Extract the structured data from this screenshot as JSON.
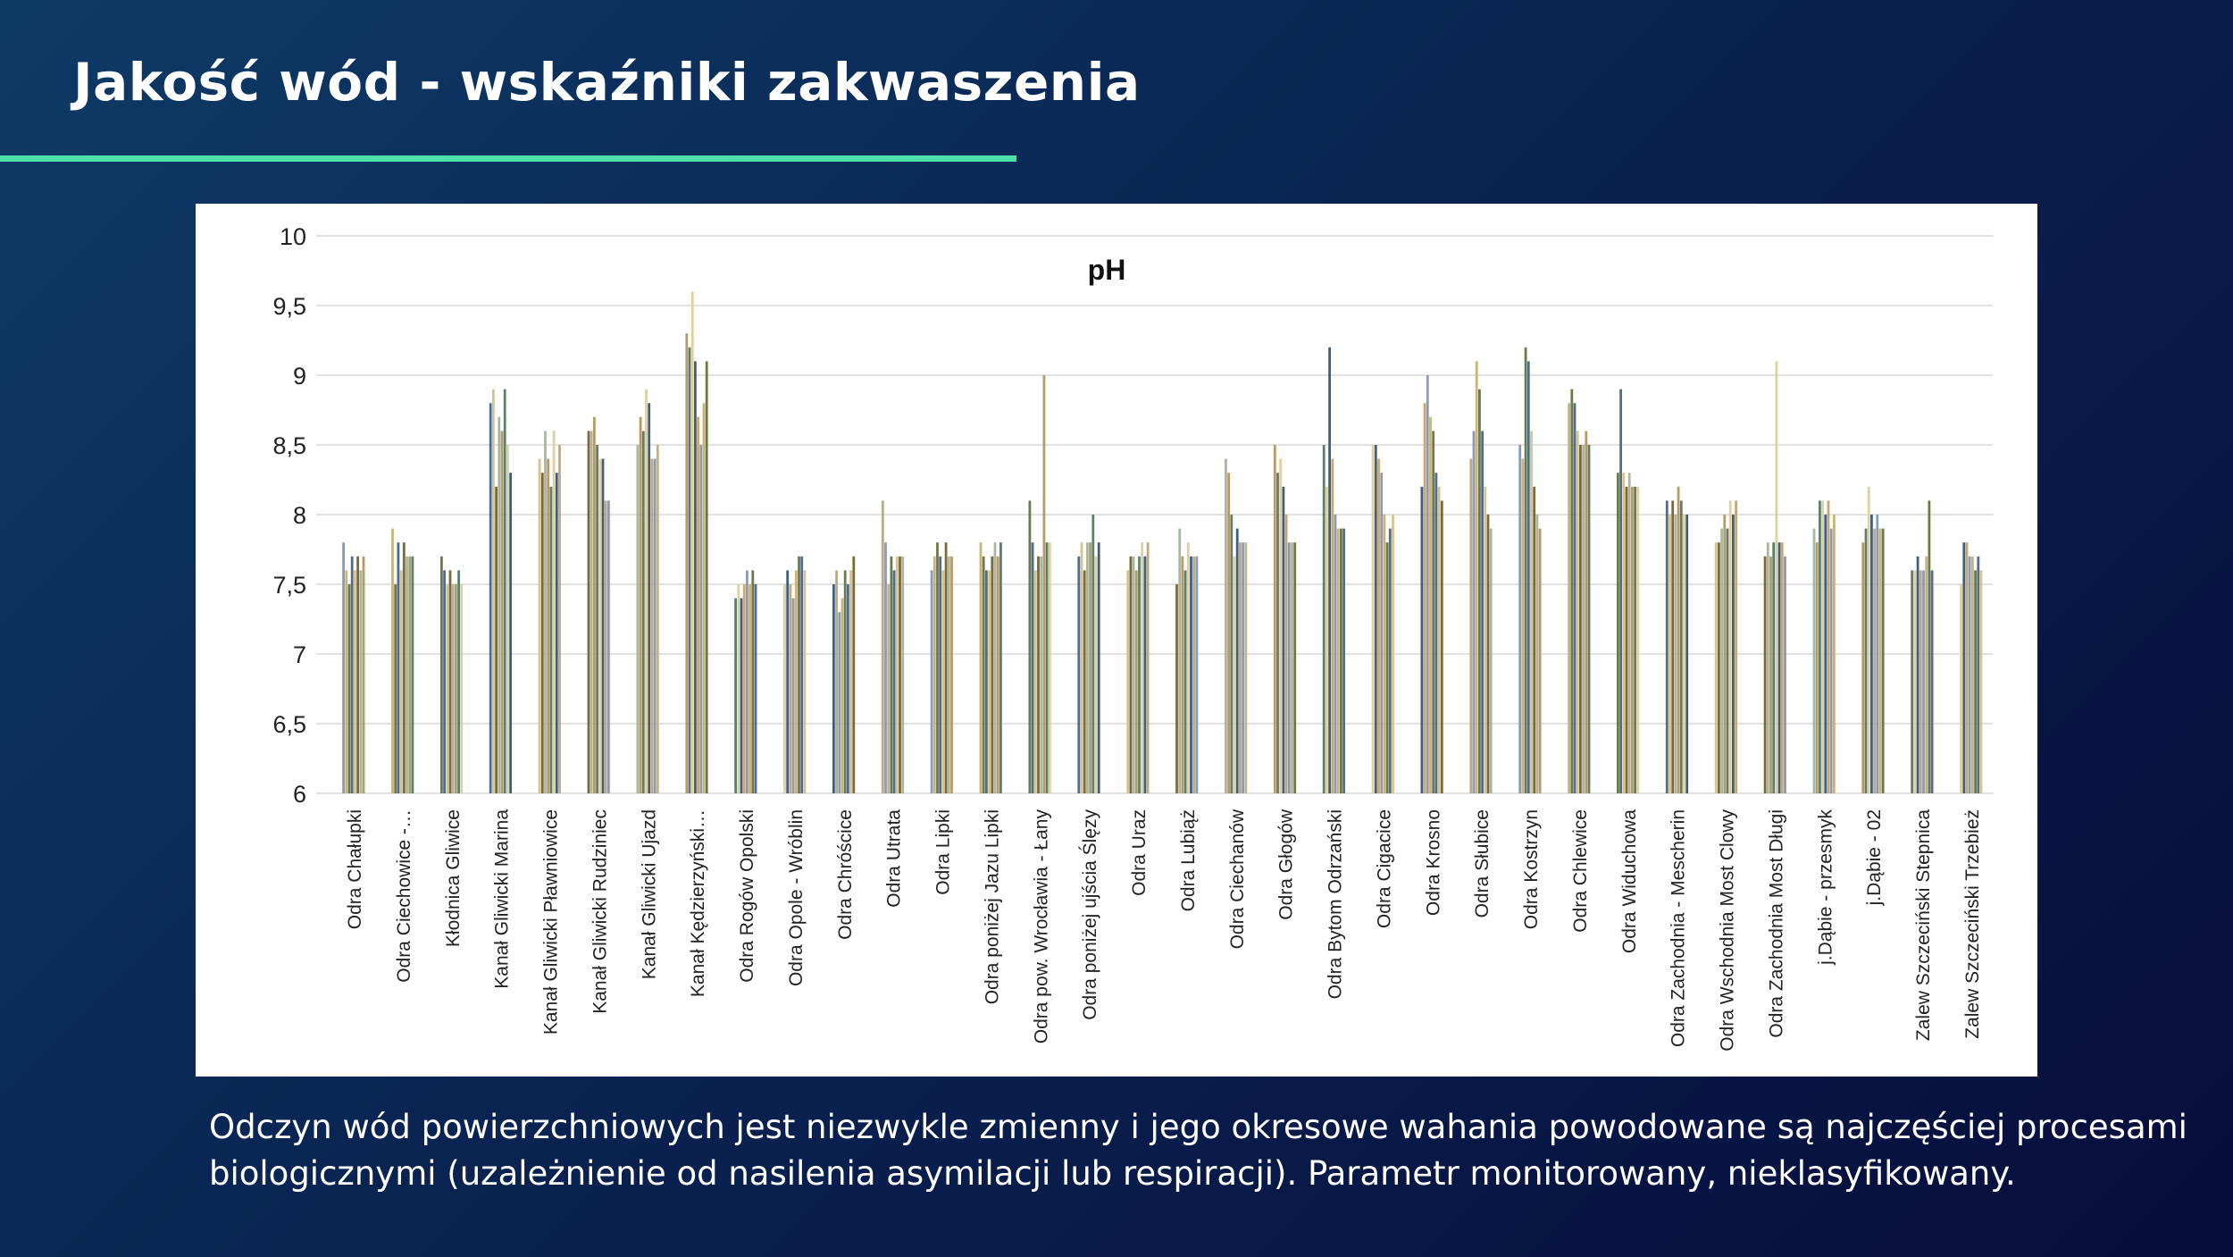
{
  "slide": {
    "title": "Jakość wód - wskaźniki zakwaszenia",
    "caption_line1": "Odczyn wód powierzchniowych jest niezwykle zmienny i jego okresowe wahania powodowane są najczęściej procesami",
    "caption_line2": "biologicznymi (uzależnienie od nasilenia asymilacji lub respiracji). Parametr monitorowany, nieklasyfikowany.",
    "accent_color": "#4de0a8"
  },
  "chart_data": {
    "type": "bar",
    "title": "pH",
    "xlabel": "",
    "ylabel": "",
    "ylim": [
      6,
      10
    ],
    "yticks": [
      "6",
      "6,5",
      "7",
      "7,5",
      "8",
      "8,5",
      "9",
      "9,5",
      "10"
    ],
    "grid": true,
    "legend": "none",
    "bar_colors": [
      "#8a9bb8",
      "#c9b37a",
      "#6b7a4a",
      "#4f6d8f",
      "#d8c28e",
      "#7a6a3a",
      "#a8b8a0",
      "#b89a68",
      "#5d7f6e",
      "#e0cfa0",
      "#3f5f7f",
      "#c4a878"
    ],
    "categories": [
      "Odra Chałupki",
      "Odra Ciechowice -…",
      "Kłodnica Gliwice",
      "Kanał Gliwicki Marina",
      "Kanał Gliwicki Pławniowice",
      "Kanał Gliwicki Rudziniec",
      "Kanał Gliwicki Ujazd",
      "Kanał Kędzierzyński…",
      "Odra Rogów Opolski",
      "Odra Opole - Wróblin",
      "Odra Chróścice",
      "Odra Utrata",
      "Odra Lipki",
      "Odra poniżej Jazu Lipki",
      "Odra pow. Wrocławia - Łany",
      "Odra poniżej ujścia Ślęzy",
      "Odra Uraz",
      "Odra Lubiąż",
      "Odra Ciechanów",
      "Odra Głogów",
      "Odra Bytom Odrzański",
      "Odra Cigacice",
      "Odra Krosno",
      "Odra Słubice",
      "Odra Kostrzyn",
      "Odra Chlewice",
      "Odra Widuchowa",
      "Odra Zachodnia - Mescherin",
      "Odra Wschodnia Most Clowy",
      "Odra Zachodnia Most Długi",
      "j.Dąbie - przesmyk",
      "j.Dąbie - 02",
      "Zalew Szczeciński Stepnica",
      "Zalew Szczeciński Trzebież"
    ],
    "series": [
      {
        "values": [
          7.8,
          7.9,
          7.7,
          8.8,
          8.4,
          8.6,
          8.5,
          9.3,
          7.4,
          7.5,
          7.5,
          8.1,
          7.6,
          7.8,
          8.1,
          7.7,
          7.6,
          7.5,
          8.4,
          8.5,
          8.5,
          8.5,
          8.2,
          8.4,
          8.5,
          8.8,
          8.3,
          8.1,
          7.8,
          7.7,
          7.9,
          7.8,
          7.6,
          7.5
        ]
      },
      {
        "values": [
          7.6,
          7.5,
          7.6,
          8.9,
          8.3,
          8.6,
          8.7,
          9.2,
          7.5,
          7.6,
          7.6,
          7.8,
          7.7,
          7.7,
          7.8,
          7.8,
          7.7,
          7.9,
          8.3,
          8.3,
          8.2,
          8.5,
          8.8,
          8.6,
          8.4,
          8.9,
          8.9,
          8.0,
          7.8,
          7.8,
          7.8,
          7.9,
          7.6,
          7.8
        ]
      },
      {
        "values": [
          7.5,
          7.8,
          7.5,
          8.2,
          8.6,
          8.7,
          8.6,
          9.6,
          7.4,
          7.5,
          7.3,
          7.5,
          7.8,
          7.6,
          7.6,
          7.6,
          7.7,
          7.7,
          8.0,
          8.4,
          9.2,
          8.4,
          9.0,
          9.1,
          9.2,
          8.8,
          8.3,
          8.1,
          7.9,
          7.7,
          8.1,
          8.2,
          7.7,
          7.8
        ]
      },
      {
        "values": [
          7.7,
          7.6,
          7.6,
          8.7,
          8.4,
          8.5,
          8.9,
          9.1,
          7.5,
          7.4,
          7.4,
          7.7,
          7.7,
          7.6,
          7.7,
          7.8,
          7.6,
          7.6,
          7.7,
          8.2,
          8.4,
          8.3,
          8.7,
          8.9,
          9.1,
          8.6,
          8.2,
          8.0,
          8.0,
          7.8,
          8.1,
          8.0,
          7.6,
          7.7
        ]
      },
      {
        "values": [
          7.6,
          7.8,
          7.5,
          8.6,
          8.2,
          8.4,
          8.8,
          8.7,
          7.6,
          7.6,
          7.6,
          7.6,
          7.6,
          7.7,
          7.7,
          7.8,
          7.7,
          7.8,
          7.9,
          8.0,
          8.0,
          8.0,
          8.6,
          8.6,
          8.6,
          8.5,
          8.3,
          8.2,
          7.9,
          9.1,
          8.0,
          7.9,
          7.6,
          7.7
        ]
      },
      {
        "values": [
          7.7,
          7.7,
          7.5,
          8.9,
          8.6,
          8.4,
          8.4,
          8.5,
          7.5,
          7.7,
          7.5,
          7.7,
          7.8,
          7.8,
          9.0,
          8.0,
          7.8,
          7.7,
          7.8,
          7.8,
          7.9,
          7.8,
          8.3,
          8.2,
          8.2,
          8.5,
          8.2,
          8.1,
          8.1,
          7.8,
          8.1,
          8.0,
          7.7,
          7.6
        ]
      },
      {
        "values": [
          7.6,
          7.7,
          7.6,
          8.5,
          8.3,
          8.1,
          8.4,
          8.8,
          7.6,
          7.7,
          7.6,
          7.7,
          7.7,
          7.7,
          7.8,
          7.7,
          7.7,
          7.7,
          7.8,
          7.8,
          7.9,
          7.9,
          8.2,
          8.0,
          8.0,
          8.6,
          8.2,
          8.0,
          8.0,
          7.8,
          7.9,
          7.9,
          8.1,
          7.7
        ]
      },
      {
        "values": [
          7.7,
          7.7,
          7.5,
          8.3,
          8.5,
          8.1,
          8.5,
          9.1,
          7.5,
          7.6,
          7.7,
          7.7,
          7.7,
          7.8,
          7.8,
          7.8,
          7.8,
          7.7,
          7.8,
          7.8,
          7.9,
          8.0,
          8.1,
          7.9,
          7.9,
          8.5,
          8.2,
          8.0,
          8.1,
          7.7,
          8.0,
          7.9,
          7.6,
          7.6
        ]
      }
    ]
  }
}
